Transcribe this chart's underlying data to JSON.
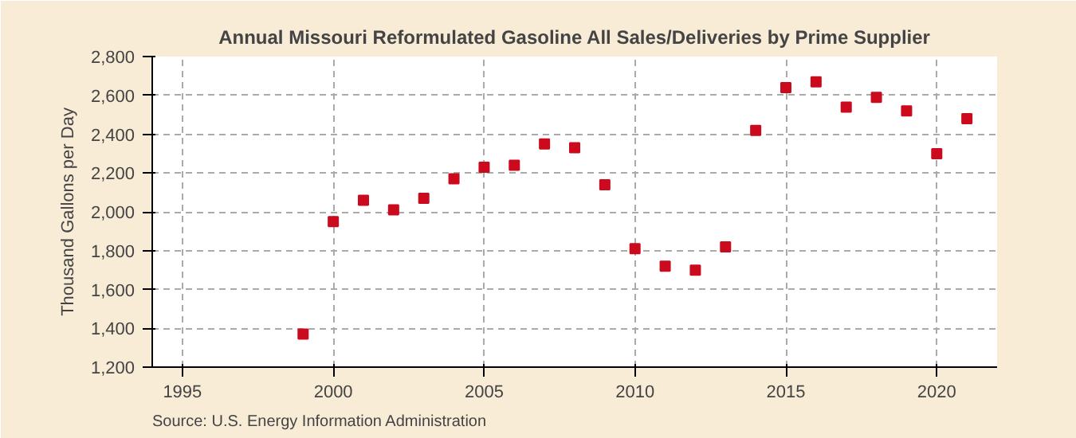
{
  "chart_data": {
    "type": "scatter",
    "title": "Annual Missouri Reformulated Gasoline All Sales/Deliveries by Prime Supplier",
    "ylabel": "Thousand Gallons per Day",
    "annotations": [
      "Source: U.S. Energy Information Administration"
    ],
    "x": [
      1999,
      2000,
      2001,
      2002,
      2003,
      2004,
      2005,
      2006,
      2007,
      2008,
      2009,
      2010,
      2011,
      2012,
      2013,
      2014,
      2015,
      2016,
      2017,
      2018,
      2019,
      2020,
      2021
    ],
    "series": [
      {
        "color": "#cc0a1e",
        "values": [
          1370,
          1950,
          2060,
          2010,
          2070,
          2170,
          2230,
          2240,
          2350,
          2330,
          2140,
          1810,
          1720,
          1700,
          1820,
          2420,
          2640,
          2670,
          2540,
          2590,
          2520,
          2300,
          2480
        ]
      }
    ],
    "xlim": [
      1994,
      2022
    ],
    "xticks": [
      1995,
      2000,
      2005,
      2010,
      2015,
      2020
    ],
    "ylim": [
      1200,
      2800
    ],
    "yticks": [
      {
        "value": 1200,
        "label": "1,200"
      },
      {
        "value": 1400,
        "label": "1,400"
      },
      {
        "value": 1600,
        "label": "1,600"
      },
      {
        "value": 1800,
        "label": "1,800"
      },
      {
        "value": 2000,
        "label": "2,000"
      },
      {
        "value": 2200,
        "label": "2,200"
      },
      {
        "value": 2400,
        "label": "2,400"
      },
      {
        "value": 2600,
        "label": "2,600"
      },
      {
        "value": 2800,
        "label": "2,800"
      }
    ],
    "grid": true,
    "marker": "square"
  }
}
